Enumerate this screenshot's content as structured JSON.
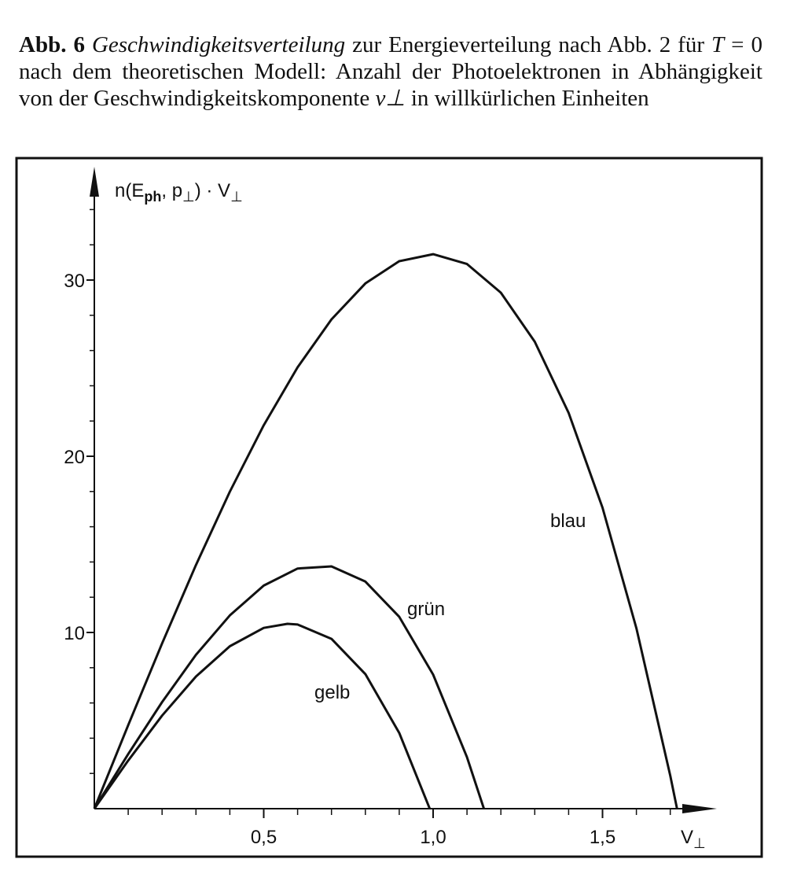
{
  "caption": {
    "label": "Abb. 6",
    "title": "Geschwindigkeitsverteilung",
    "text1": "zur Energieverteilung nach Abb. 2 für",
    "var1": "T",
    "text2": "= 0 nach dem theoretischen Modell: Anzahl der Photoelektronen in Abhängigkeit von der Geschwindigkeitskomponente",
    "var2": "v⊥",
    "text3": "in willkürlichen Einheiten"
  },
  "chart_data": {
    "type": "line",
    "ylabel": [
      "n(E",
      "ph",
      ", p",
      "⊥",
      ") · V",
      "⊥"
    ],
    "xlabel": [
      "V",
      "⊥"
    ],
    "xlim": [
      0,
      1.82
    ],
    "ylim": [
      0,
      35.8
    ],
    "xticks": [
      {
        "value": 0.5,
        "label": "0,5"
      },
      {
        "value": 1.0,
        "label": "1,0"
      },
      {
        "value": 1.5,
        "label": "1,5"
      }
    ],
    "xminorticks": [
      0.1,
      0.2,
      0.3,
      0.4,
      0.6,
      0.7,
      0.8,
      0.9,
      1.1,
      1.2,
      1.3,
      1.4,
      1.6,
      1.7
    ],
    "yticks": [
      10,
      20,
      30
    ],
    "yminorticks": [
      2,
      4,
      6,
      8,
      12,
      14,
      16,
      18,
      22,
      24,
      26,
      28,
      32,
      34
    ],
    "color": "#111111",
    "series": [
      {
        "name": "blau",
        "x": [
          0,
          0.1,
          0.2,
          0.3,
          0.4,
          0.5,
          0.6,
          0.7,
          0.8,
          0.9,
          1.0,
          1.1,
          1.2,
          1.3,
          1.4,
          1.5,
          1.6,
          1.7,
          1.72
        ],
        "values": [
          0,
          4.74,
          9.38,
          13.83,
          17.99,
          21.76,
          25.05,
          27.77,
          29.81,
          31.07,
          31.47,
          30.91,
          29.28,
          26.5,
          22.46,
          17.08,
          10.24,
          1.87,
          0
        ]
      },
      {
        "name": "grün",
        "x": [
          0,
          0.1,
          0.2,
          0.3,
          0.4,
          0.5,
          0.6,
          0.7,
          0.8,
          0.9,
          1.0,
          1.1,
          1.15
        ],
        "values": [
          0,
          3.1,
          6.05,
          8.73,
          10.97,
          12.66,
          13.63,
          13.75,
          12.89,
          10.89,
          7.61,
          2.92,
          0
        ]
      },
      {
        "name": "gelb",
        "x": [
          0,
          0.1,
          0.2,
          0.3,
          0.4,
          0.5,
          0.57,
          0.6,
          0.7,
          0.8,
          0.9,
          0.99
        ],
        "values": [
          0,
          2.73,
          5.28,
          7.5,
          9.22,
          10.26,
          10.49,
          10.45,
          9.64,
          7.64,
          4.3,
          0
        ]
      }
    ]
  }
}
